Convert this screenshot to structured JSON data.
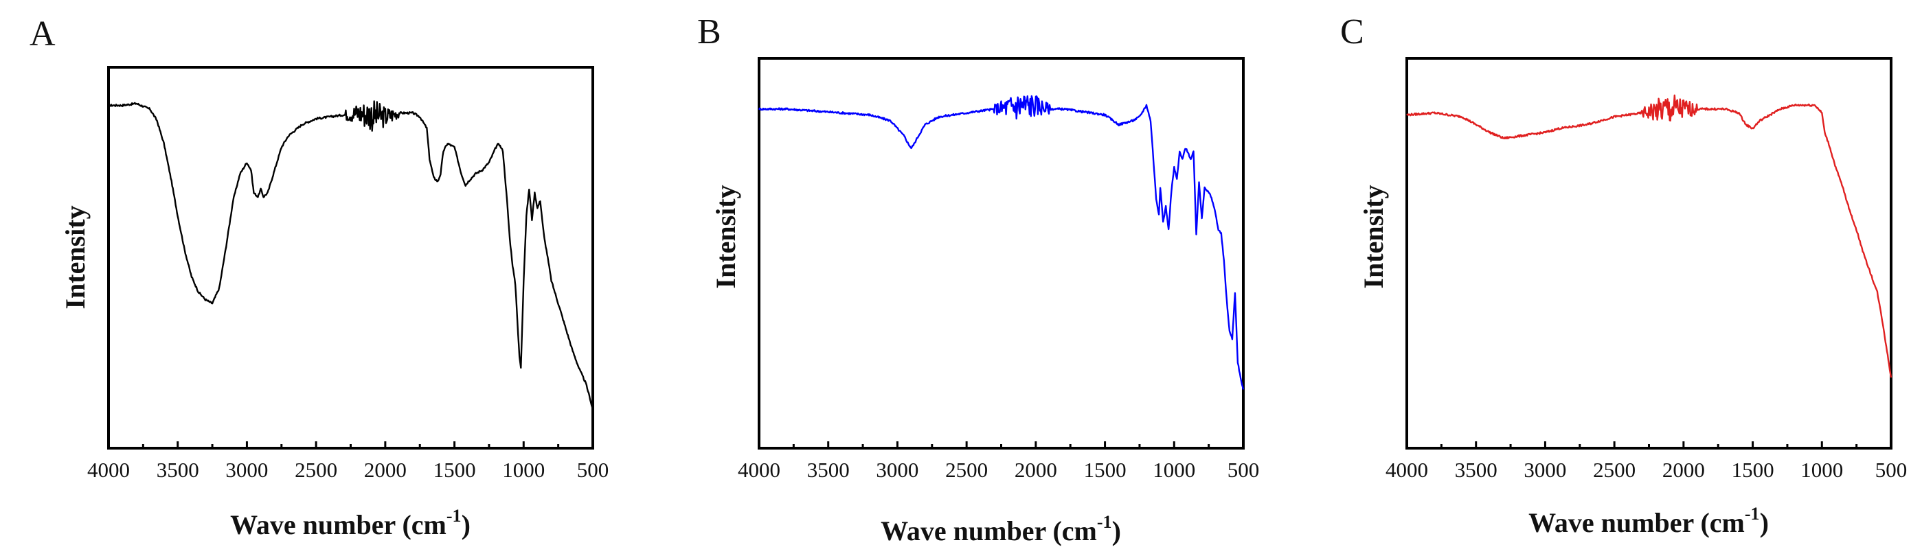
{
  "figure": {
    "panel_count": 3
  },
  "chart_data": [
    {
      "type": "line",
      "panel_label": "A",
      "color": "#000000",
      "xlabel": "Wave number (cm",
      "xlabel_sup": "-1",
      "xlabel_close": ")",
      "ylabel": "Intensity",
      "xlim": [
        4000,
        500
      ],
      "ylim": [
        0,
        100
      ],
      "x_ticks": [
        4000,
        3500,
        3000,
        2500,
        2000,
        1500,
        1000,
        500
      ],
      "x_tick_labels": [
        "4000",
        "3500",
        "3000",
        "2500",
        "2000",
        "1500",
        "1000",
        "500"
      ],
      "series": [
        {
          "name": "A",
          "x": [
            4000,
            3900,
            3800,
            3700,
            3650,
            3600,
            3550,
            3500,
            3450,
            3400,
            3350,
            3300,
            3250,
            3200,
            3150,
            3100,
            3050,
            3000,
            2970,
            2950,
            2920,
            2900,
            2880,
            2850,
            2800,
            2750,
            2700,
            2600,
            2500,
            2400,
            2300,
            2200,
            2100,
            2000,
            1900,
            1800,
            1750,
            1700,
            1680,
            1650,
            1620,
            1600,
            1580,
            1550,
            1500,
            1450,
            1420,
            1400,
            1350,
            1300,
            1250,
            1200,
            1180,
            1150,
            1120,
            1100,
            1080,
            1060,
            1050,
            1040,
            1030,
            1020,
            1000,
            980,
            960,
            940,
            920,
            900,
            880,
            860,
            850,
            830,
            800,
            750,
            700,
            650,
            600,
            550,
            520,
            500
          ],
          "y": [
            90,
            90,
            90.5,
            89,
            86,
            80,
            71,
            61,
            52,
            45,
            41,
            39,
            38,
            42,
            53,
            65,
            72,
            75,
            73,
            67,
            66,
            68,
            66,
            67,
            73,
            79,
            82,
            85,
            86.5,
            87,
            87.5,
            88,
            87.5,
            87,
            88,
            88,
            87,
            84,
            76,
            71,
            70,
            72,
            78,
            80,
            79,
            72,
            69,
            70,
            72,
            73,
            75,
            79,
            80,
            78,
            65,
            55,
            48,
            43,
            37,
            30,
            24,
            21,
            44,
            61,
            68,
            60,
            67,
            63,
            65,
            58,
            55,
            51,
            44,
            38,
            32,
            26,
            21,
            17,
            13,
            10
          ],
          "noise_region": [
            2300,
            1900
          ]
        }
      ]
    },
    {
      "type": "line",
      "panel_label": "B",
      "color": "#0000ff",
      "xlabel": "Wave number (cm",
      "xlabel_sup": "-1",
      "xlabel_close": ")",
      "ylabel": "Intensity",
      "xlim": [
        4000,
        500
      ],
      "ylim": [
        0,
        100
      ],
      "x_ticks": [
        4000,
        3500,
        3000,
        2500,
        2000,
        1500,
        1000,
        500
      ],
      "x_tick_labels": [
        "4000",
        "3500",
        "3000",
        "2500",
        "2000",
        "1500",
        "1000",
        "500"
      ],
      "series": [
        {
          "name": "B",
          "x": [
            4000,
            3800,
            3600,
            3400,
            3200,
            3050,
            3000,
            2950,
            2920,
            2900,
            2880,
            2850,
            2800,
            2700,
            2600,
            2500,
            2400,
            2300,
            2200,
            2100,
            2000,
            1900,
            1800,
            1700,
            1600,
            1500,
            1400,
            1300,
            1250,
            1200,
            1170,
            1150,
            1130,
            1110,
            1100,
            1080,
            1060,
            1040,
            1020,
            1000,
            980,
            960,
            940,
            920,
            900,
            880,
            860,
            840,
            820,
            800,
            780,
            760,
            740,
            720,
            700,
            680,
            660,
            640,
            620,
            600,
            580,
            560,
            540,
            520,
            500
          ],
          "y": [
            87,
            87,
            86.5,
            86,
            85.5,
            84,
            82,
            80,
            78,
            77,
            78,
            80,
            83,
            85,
            85.5,
            86,
            86.5,
            87,
            87.5,
            88,
            88,
            87,
            87,
            86.5,
            86,
            85.5,
            83,
            84,
            85,
            88,
            84,
            74,
            64,
            60,
            67,
            58,
            62,
            56,
            66,
            72,
            69,
            76,
            74,
            77,
            76,
            74,
            76,
            55,
            68,
            59,
            67,
            66,
            65,
            63,
            60,
            56,
            55,
            48,
            38,
            30,
            28,
            40,
            22,
            18,
            15
          ],
          "noise_region": [
            2300,
            1900
          ]
        }
      ]
    },
    {
      "type": "line",
      "panel_label": "C",
      "color": "#e02020",
      "xlabel": "Wave number (cm",
      "xlabel_sup": "-1",
      "xlabel_close": ")",
      "ylabel": "Intensity",
      "xlim": [
        4000,
        500
      ],
      "ylim": [
        0,
        100
      ],
      "x_ticks": [
        4000,
        3500,
        3000,
        2500,
        2000,
        1500,
        1000,
        500
      ],
      "x_tick_labels": [
        "4000",
        "3500",
        "3000",
        "2500",
        "2000",
        "1500",
        "1000",
        "500"
      ],
      "series": [
        {
          "name": "C",
          "x": [
            4000,
            3800,
            3600,
            3500,
            3400,
            3300,
            3200,
            3100,
            3000,
            2900,
            2800,
            2700,
            2600,
            2500,
            2400,
            2300,
            2200,
            2100,
            2000,
            1900,
            1800,
            1700,
            1600,
            1550,
            1500,
            1450,
            1400,
            1350,
            1300,
            1200,
            1100,
            1050,
            1000,
            980,
            950,
            900,
            850,
            800,
            750,
            700,
            650,
            600,
            560,
            530,
            500
          ],
          "y": [
            85.5,
            86,
            85,
            83,
            81,
            79.5,
            80,
            80.5,
            81,
            82,
            82.5,
            83,
            84,
            85,
            85.5,
            86,
            86.5,
            87,
            87,
            87,
            87,
            87,
            86,
            83,
            82,
            84,
            85,
            86,
            87,
            88,
            88,
            88,
            86,
            81,
            78,
            72,
            67,
            61,
            56,
            50,
            45,
            40,
            32,
            25,
            18
          ],
          "noise_region": [
            2300,
            1900
          ]
        }
      ]
    }
  ]
}
